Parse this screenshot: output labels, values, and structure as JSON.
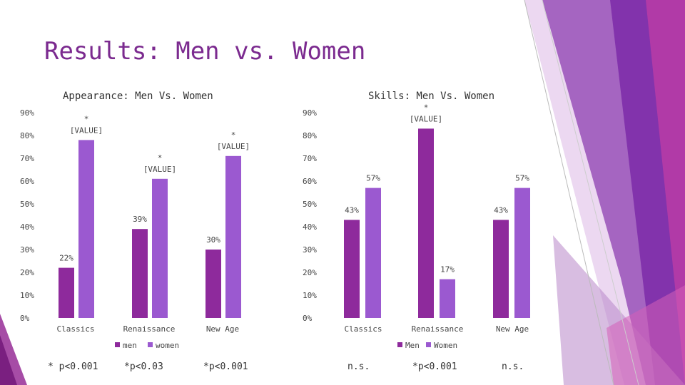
{
  "slide": {
    "title": "Results: Men vs. Women"
  },
  "theme": {
    "men_color": "#8e2a9c",
    "women_color": "#9b59d0",
    "title_color": "#7b2a8f"
  },
  "chart_data": [
    {
      "type": "bar",
      "title": "Appearance: Men Vs. Women",
      "categories": [
        "Classics",
        "Renaissance",
        "New Age"
      ],
      "ylim": [
        0,
        90
      ],
      "yticks": [
        0,
        10,
        20,
        30,
        40,
        50,
        60,
        70,
        80,
        90
      ],
      "tick_format": "{v}%",
      "legend_position": "bottom",
      "series": [
        {
          "name": "men",
          "values": [
            22,
            39,
            30
          ],
          "labels": [
            "22%",
            "39%",
            "30%"
          ]
        },
        {
          "name": "women",
          "values": [
            78,
            61,
            71
          ],
          "labels": [
            "*\n[VALUE]",
            "*\n[VALUE]",
            "*\n[VALUE]"
          ]
        }
      ],
      "notes": [
        "* p<0.001",
        "*p<0.03",
        "*p<0.001"
      ]
    },
    {
      "type": "bar",
      "title": "Skills: Men Vs. Women",
      "categories": [
        "Classics",
        "Renaissance",
        "New Age"
      ],
      "ylim": [
        0,
        90
      ],
      "yticks": [
        0,
        10,
        20,
        30,
        40,
        50,
        60,
        70,
        80,
        90
      ],
      "tick_format": "{v}%",
      "legend_position": "bottom",
      "series": [
        {
          "name": "Men",
          "values": [
            43,
            83,
            43
          ],
          "labels": [
            "43%",
            "*\n[VALUE]",
            "43%"
          ]
        },
        {
          "name": "Women",
          "values": [
            57,
            17,
            57
          ],
          "labels": [
            "57%",
            "17%",
            "57%"
          ]
        }
      ],
      "notes": [
        "n.s.",
        "*p<0.001",
        "n.s."
      ]
    }
  ]
}
